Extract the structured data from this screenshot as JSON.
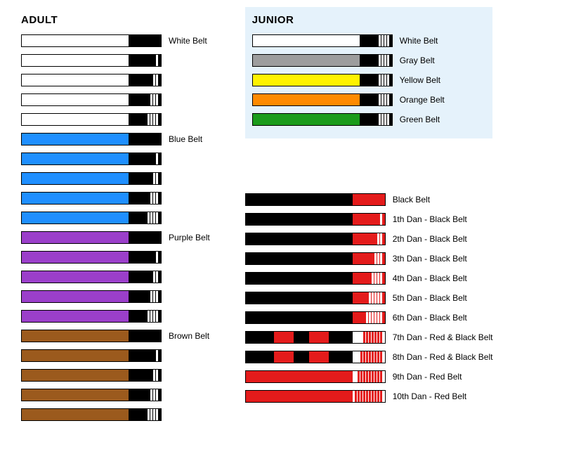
{
  "colors": {
    "white": "#ffffff",
    "black": "#000000",
    "blue": "#1f8fff",
    "purple": "#9b3fca",
    "brown": "#9b5a1d",
    "gray": "#9d9d9d",
    "yellow": "#fff200",
    "orange": "#ff8a00",
    "green": "#1a9b1a",
    "red": "#e41b1b",
    "juniorBg": "#e5f2fb"
  },
  "layout": {
    "beltWidth": 200,
    "beltHeight": 18,
    "rankBarWidth": 46,
    "stripeWidth": 3,
    "stripeGap": 5,
    "stripePad": 4
  },
  "sections": {
    "adult": {
      "title": "ADULT",
      "belts": [
        {
          "color": "white",
          "rank": "black",
          "stripes": 0,
          "stripeColor": "white",
          "label": "White Belt"
        },
        {
          "color": "white",
          "rank": "black",
          "stripes": 1,
          "stripeColor": "white",
          "label": ""
        },
        {
          "color": "white",
          "rank": "black",
          "stripes": 2,
          "stripeColor": "white",
          "label": ""
        },
        {
          "color": "white",
          "rank": "black",
          "stripes": 3,
          "stripeColor": "white",
          "label": ""
        },
        {
          "color": "white",
          "rank": "black",
          "stripes": 4,
          "stripeColor": "white",
          "label": ""
        },
        {
          "color": "blue",
          "rank": "black",
          "stripes": 0,
          "stripeColor": "white",
          "label": "Blue Belt"
        },
        {
          "color": "blue",
          "rank": "black",
          "stripes": 1,
          "stripeColor": "white",
          "label": ""
        },
        {
          "color": "blue",
          "rank": "black",
          "stripes": 2,
          "stripeColor": "white",
          "label": ""
        },
        {
          "color": "blue",
          "rank": "black",
          "stripes": 3,
          "stripeColor": "white",
          "label": ""
        },
        {
          "color": "blue",
          "rank": "black",
          "stripes": 4,
          "stripeColor": "white",
          "label": ""
        },
        {
          "color": "purple",
          "rank": "black",
          "stripes": 0,
          "stripeColor": "white",
          "label": "Purple Belt"
        },
        {
          "color": "purple",
          "rank": "black",
          "stripes": 1,
          "stripeColor": "white",
          "label": ""
        },
        {
          "color": "purple",
          "rank": "black",
          "stripes": 2,
          "stripeColor": "white",
          "label": ""
        },
        {
          "color": "purple",
          "rank": "black",
          "stripes": 3,
          "stripeColor": "white",
          "label": ""
        },
        {
          "color": "purple",
          "rank": "black",
          "stripes": 4,
          "stripeColor": "white",
          "label": ""
        },
        {
          "color": "brown",
          "rank": "black",
          "stripes": 0,
          "stripeColor": "white",
          "label": "Brown Belt"
        },
        {
          "color": "brown",
          "rank": "black",
          "stripes": 1,
          "stripeColor": "white",
          "label": ""
        },
        {
          "color": "brown",
          "rank": "black",
          "stripes": 2,
          "stripeColor": "white",
          "label": ""
        },
        {
          "color": "brown",
          "rank": "black",
          "stripes": 3,
          "stripeColor": "white",
          "label": ""
        },
        {
          "color": "brown",
          "rank": "black",
          "stripes": 4,
          "stripeColor": "white",
          "label": ""
        }
      ]
    },
    "junior": {
      "title": "JUNIOR",
      "belts": [
        {
          "color": "white",
          "rank": "black",
          "stripes": 4,
          "stripeColor": "white",
          "label": "White Belt"
        },
        {
          "color": "gray",
          "rank": "black",
          "stripes": 4,
          "stripeColor": "white",
          "label": "Gray Belt"
        },
        {
          "color": "yellow",
          "rank": "black",
          "stripes": 4,
          "stripeColor": "white",
          "label": "Yellow Belt"
        },
        {
          "color": "orange",
          "rank": "black",
          "stripes": 4,
          "stripeColor": "white",
          "label": "Orange Belt"
        },
        {
          "color": "green",
          "rank": "black",
          "stripes": 4,
          "stripeColor": "white",
          "label": "Green Belt"
        }
      ]
    },
    "dan": {
      "belts": [
        {
          "type": "std",
          "color": "black",
          "rank": "red",
          "stripes": 0,
          "stripeColor": "white",
          "label": "Black Belt"
        },
        {
          "type": "std",
          "color": "black",
          "rank": "red",
          "stripes": 1,
          "stripeColor": "white",
          "label": "1th Dan - Black Belt"
        },
        {
          "type": "std",
          "color": "black",
          "rank": "red",
          "stripes": 2,
          "stripeColor": "white",
          "label": "2th Dan - Black Belt"
        },
        {
          "type": "std",
          "color": "black",
          "rank": "red",
          "stripes": 3,
          "stripeColor": "white",
          "label": "3th Dan - Black Belt"
        },
        {
          "type": "std",
          "color": "black",
          "rank": "red",
          "stripes": 4,
          "stripeColor": "white",
          "label": "4th Dan - Black Belt"
        },
        {
          "type": "std",
          "color": "black",
          "rank": "red",
          "stripes": 5,
          "stripeColor": "white",
          "label": "5th Dan - Black Belt"
        },
        {
          "type": "std",
          "color": "black",
          "rank": "red",
          "stripes": 6,
          "stripeColor": "white",
          "label": "6th Dan - Black Belt"
        },
        {
          "type": "dbl",
          "color": "black",
          "blockColor": "red",
          "rank": "white",
          "stripes": 7,
          "stripeColor": "red",
          "label": "7th Dan - Red & Black Belt"
        },
        {
          "type": "dbl",
          "color": "black",
          "blockColor": "red",
          "rank": "white",
          "stripes": 8,
          "stripeColor": "red",
          "label": "8th Dan - Red & Black Belt"
        },
        {
          "type": "std",
          "color": "red",
          "rank": "white",
          "stripes": 9,
          "stripeColor": "red",
          "label": "9th Dan - Red Belt"
        },
        {
          "type": "std",
          "color": "red",
          "rank": "white",
          "stripes": 10,
          "stripeColor": "red",
          "label": "10th Dan - Red Belt"
        }
      ]
    }
  }
}
